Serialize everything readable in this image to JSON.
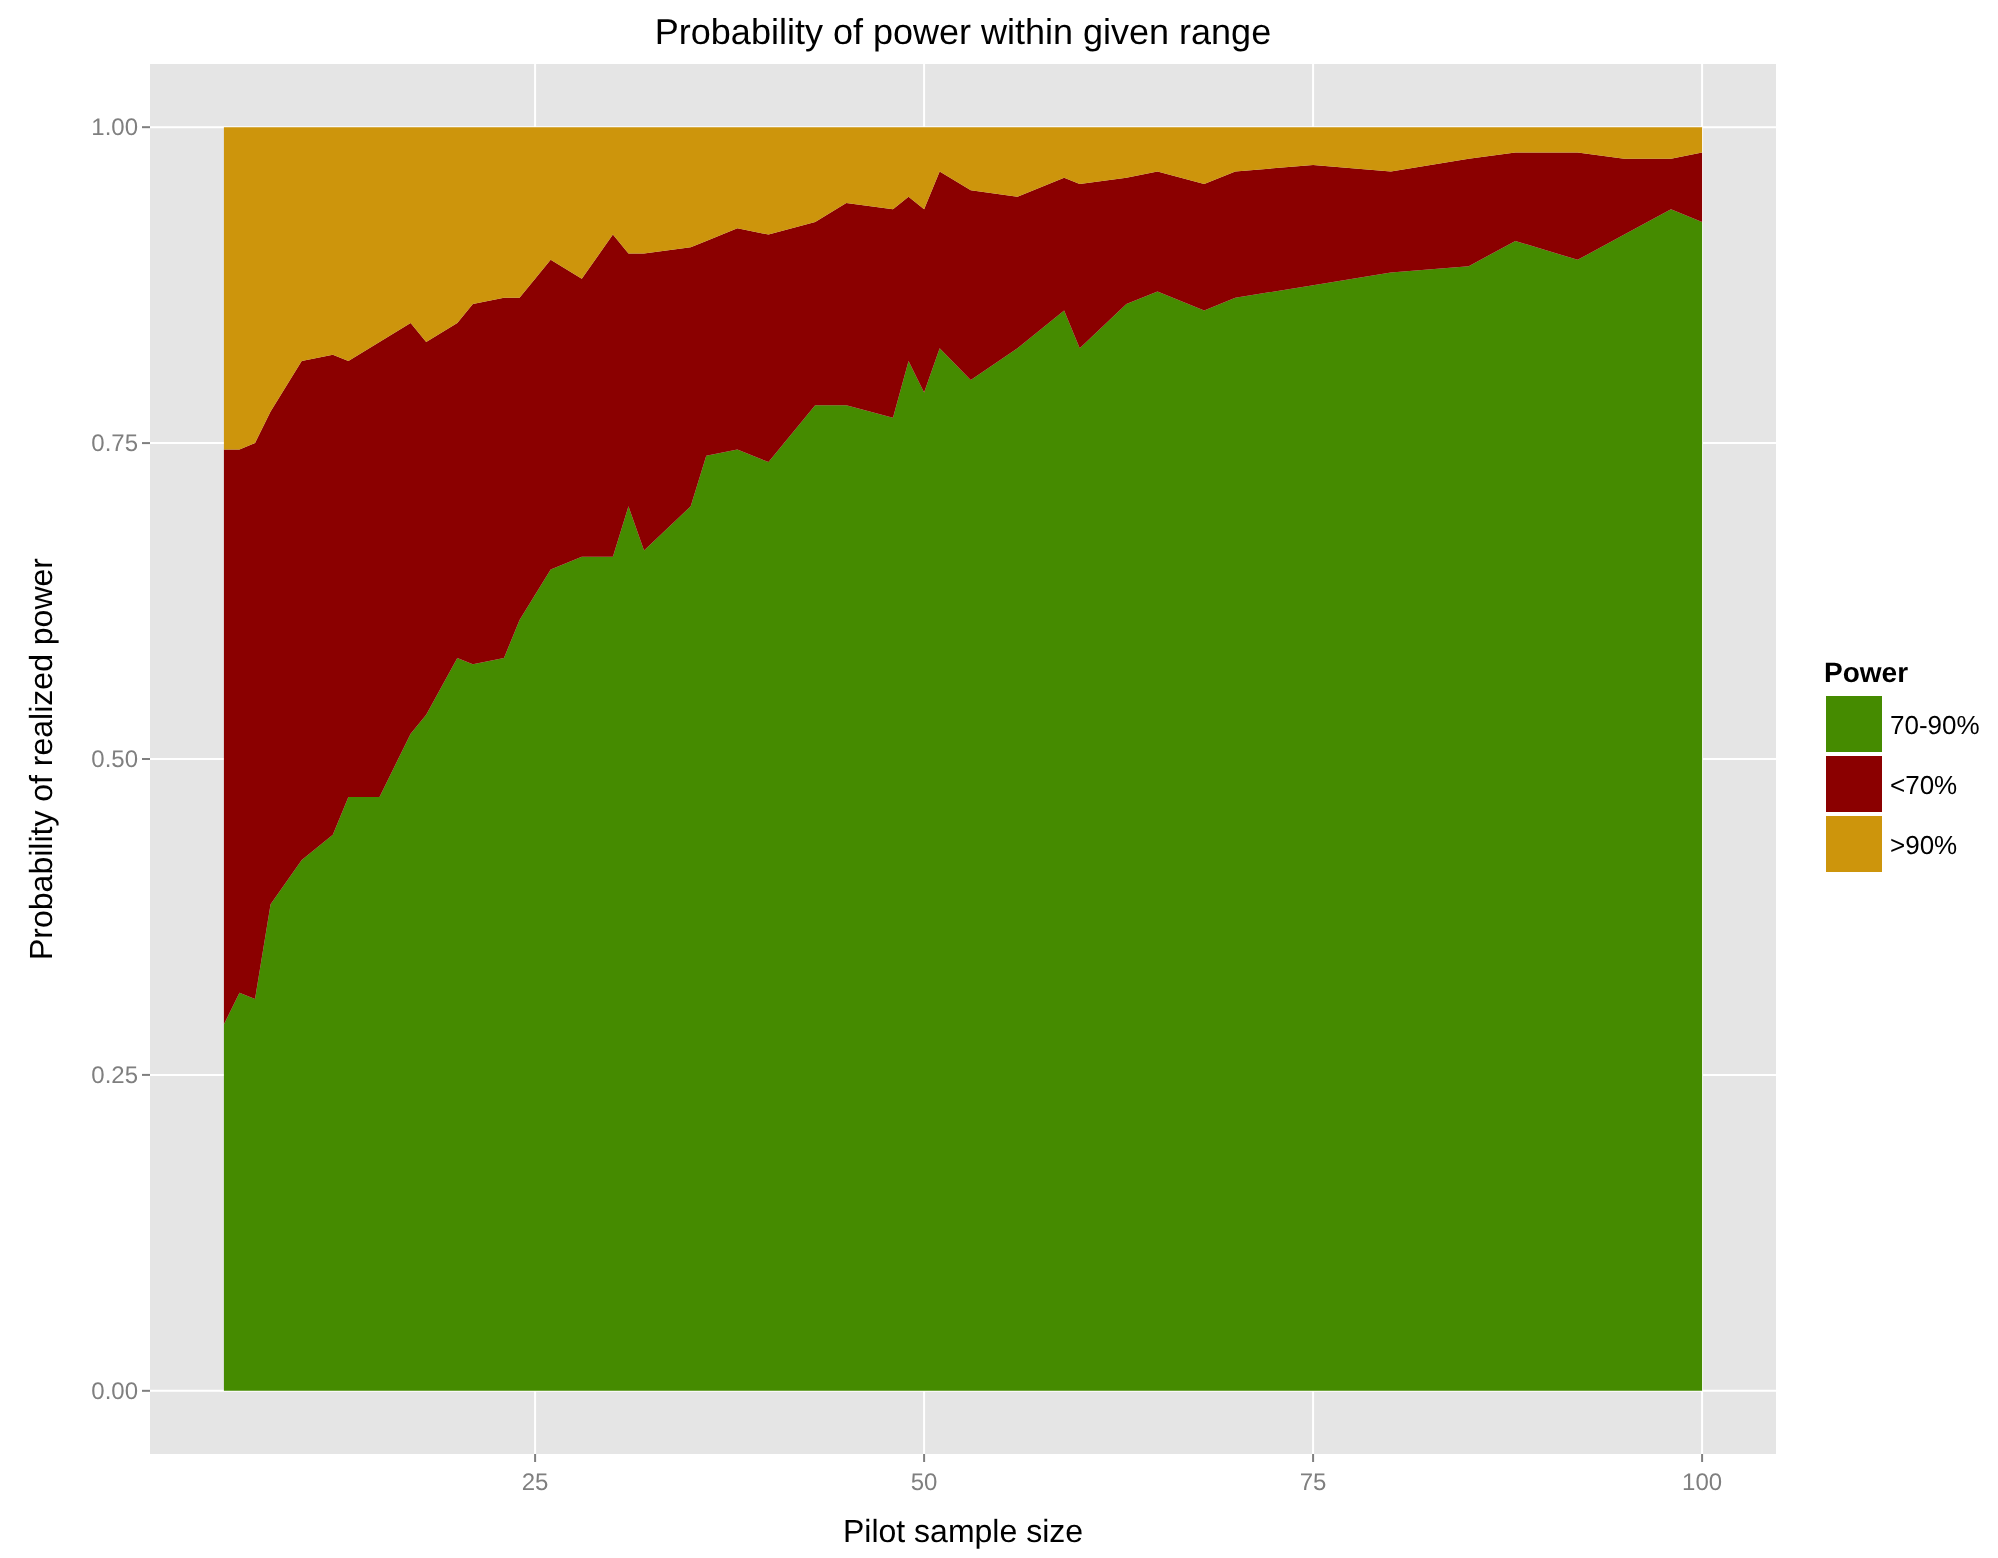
{
  "chart_data": {
    "type": "area",
    "title": "Probability of power within given range",
    "xlabel": "Pilot sample size",
    "ylabel": "Probability of realized power",
    "legend_title": "Power",
    "stacked": true,
    "legend": "right",
    "grid": true,
    "x": [
      5,
      6,
      7,
      8,
      10,
      12,
      13,
      15,
      17,
      18,
      20,
      21,
      23,
      24,
      26,
      28,
      30,
      31,
      32,
      35,
      36,
      38,
      40,
      43,
      45,
      48,
      49,
      50,
      51,
      53,
      56,
      59,
      60,
      63,
      65,
      68,
      70,
      75,
      80,
      85,
      88,
      92,
      95,
      98,
      100
    ],
    "series": [
      {
        "name": "70-90%",
        "color": "#458b00",
        "values": [
          0.29,
          0.315,
          0.31,
          0.385,
          0.42,
          0.44,
          0.47,
          0.47,
          0.52,
          0.535,
          0.58,
          0.575,
          0.58,
          0.61,
          0.65,
          0.66,
          0.66,
          0.7,
          0.665,
          0.7,
          0.74,
          0.745,
          0.735,
          0.78,
          0.78,
          0.77,
          0.815,
          0.79,
          0.825,
          0.8,
          0.825,
          0.855,
          0.825,
          0.86,
          0.87,
          0.855,
          0.865,
          0.875,
          0.885,
          0.89,
          0.91,
          0.895,
          0.915,
          0.935,
          0.925
        ]
      },
      {
        "name": "<70%",
        "color": "#8b0000",
        "values": [
          0.455,
          0.43,
          0.44,
          0.39,
          0.395,
          0.38,
          0.345,
          0.36,
          0.325,
          0.295,
          0.265,
          0.285,
          0.285,
          0.255,
          0.245,
          0.22,
          0.255,
          0.2,
          0.235,
          0.205,
          0.17,
          0.175,
          0.18,
          0.145,
          0.16,
          0.165,
          0.13,
          0.145,
          0.14,
          0.15,
          0.12,
          0.105,
          0.13,
          0.1,
          0.095,
          0.1,
          0.1,
          0.095,
          0.08,
          0.085,
          0.07,
          0.085,
          0.06,
          0.04,
          0.055
        ]
      },
      {
        "name": ">90%",
        "color": "#cd950c",
        "values": [
          0.255,
          0.255,
          0.25,
          0.225,
          0.185,
          0.18,
          0.185,
          0.17,
          0.155,
          0.17,
          0.155,
          0.14,
          0.135,
          0.135,
          0.105,
          0.12,
          0.085,
          0.1,
          0.1,
          0.095,
          0.09,
          0.08,
          0.085,
          0.075,
          0.06,
          0.065,
          0.055,
          0.065,
          0.035,
          0.05,
          0.055,
          0.04,
          0.045,
          0.04,
          0.035,
          0.045,
          0.035,
          0.03,
          0.035,
          0.025,
          0.02,
          0.02,
          0.025,
          0.025,
          0.02
        ]
      }
    ],
    "xlim": [
      0.25,
      104.75
    ],
    "xticks": [
      25,
      50,
      75,
      100
    ],
    "ylim": [
      -0.05,
      1.05
    ],
    "yticks": [
      {
        "value": 0,
        "label": "0.00"
      },
      {
        "value": 0.25,
        "label": "0.25"
      },
      {
        "value": 0.5,
        "label": "0.50"
      },
      {
        "value": 0.75,
        "label": "0.75"
      },
      {
        "value": 1,
        "label": "1.00"
      }
    ]
  }
}
